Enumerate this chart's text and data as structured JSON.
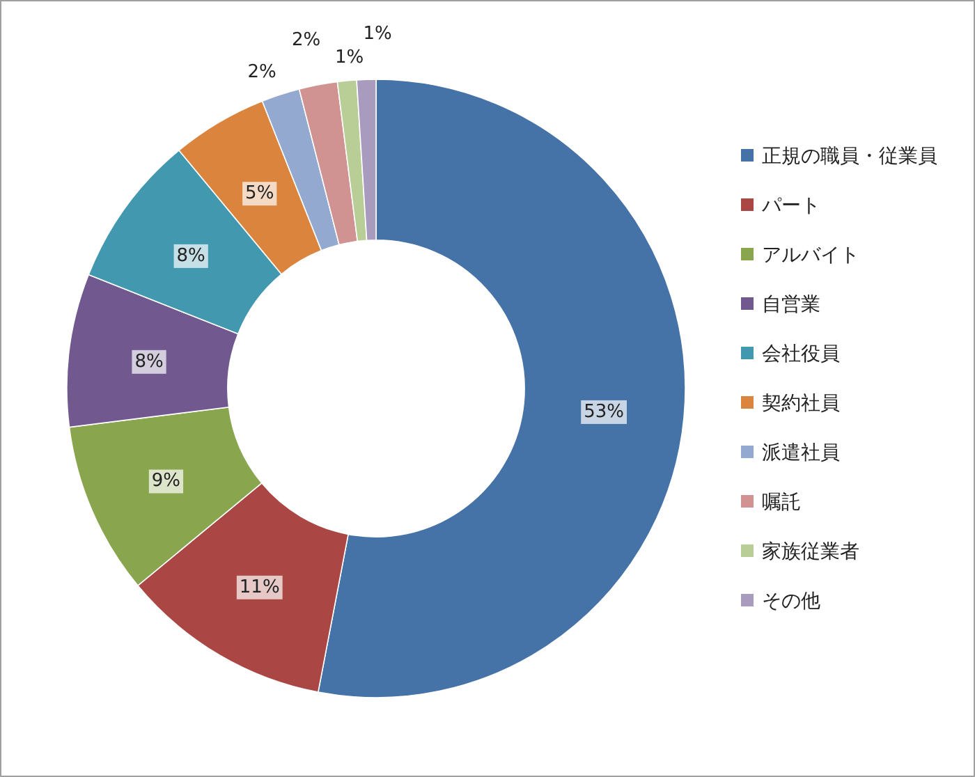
{
  "chart_data": {
    "type": "donut",
    "categories": [
      "正規の職員・従業員",
      "パート",
      "アルバイト",
      "自営業",
      "会社役員",
      "契約社員",
      "派遣社員",
      "嘱託",
      "家族従業者",
      "その他"
    ],
    "values": [
      53,
      11,
      9,
      8,
      8,
      5,
      2,
      2,
      1,
      1
    ],
    "colors": [
      "#4572a7",
      "#aa4643",
      "#89a54e",
      "#71588f",
      "#4198af",
      "#db843d",
      "#93a9cf",
      "#d19392",
      "#b9cd96",
      "#a99bbd"
    ],
    "value_labels": [
      "53%",
      "11%",
      "9%",
      "8%",
      "8%",
      "5%",
      "2%",
      "2%",
      "1%",
      "1%"
    ],
    "legend": "right"
  }
}
